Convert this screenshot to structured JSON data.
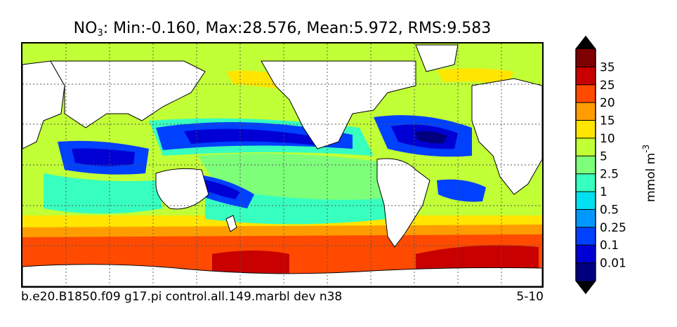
{
  "chart_data": {
    "type": "heatmap",
    "title_var": "NO",
    "title_sub": "3",
    "title_rest": ": Min:-0.160, Max:28.576, Mean:5.972, RMS:9.583",
    "caption_left": "b.e20.B1850.f09 g17.pi control.all.149.marbl dev n38",
    "caption_right": "5-10",
    "colorbar": {
      "label": "mmol m",
      "label_exp": "-3",
      "ticks": [
        "0.01",
        "0.1",
        "0.25",
        "0.5",
        "1",
        "2.5",
        "5",
        "10",
        "15",
        "20",
        "25",
        "35"
      ],
      "colors": [
        "#00007f",
        "#0000d4",
        "#0040ff",
        "#0098ff",
        "#00e0f0",
        "#37ffbf",
        "#7dff7a",
        "#c1ff36",
        "#ffe500",
        "#ff9d00",
        "#ff4a00",
        "#c80000",
        "#7f0000"
      ],
      "extend": "both"
    },
    "grid": true
  }
}
